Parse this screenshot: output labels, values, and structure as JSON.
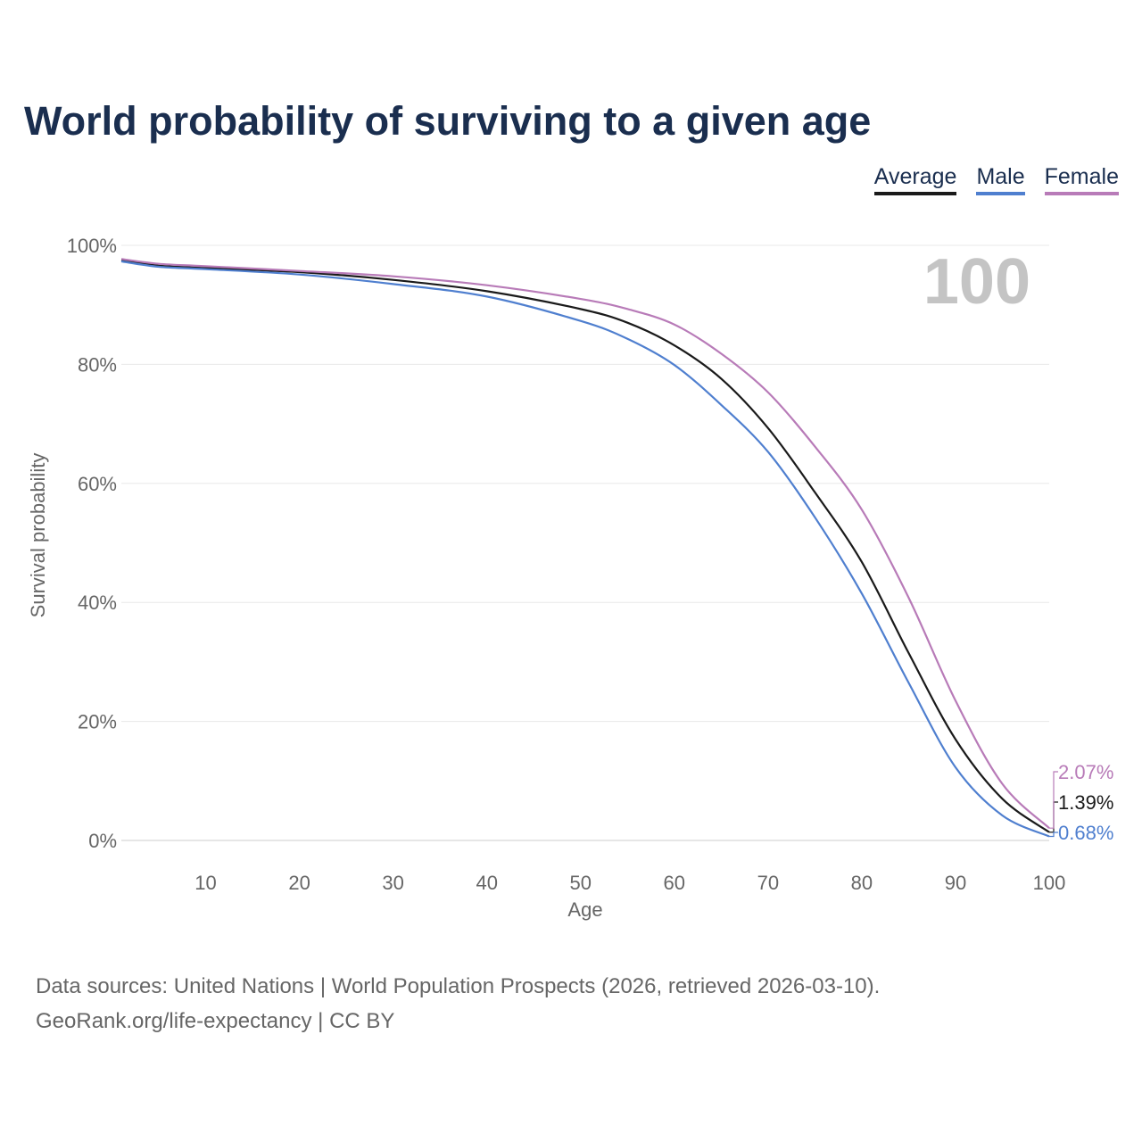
{
  "chart_data": {
    "type": "line",
    "title": "World probability of surviving to a given age",
    "xlabel": "Age",
    "ylabel": "Survival probability",
    "xlim": [
      1,
      100
    ],
    "ylim": [
      0,
      100
    ],
    "xticks": [
      10,
      20,
      30,
      40,
      50,
      60,
      70,
      80,
      90,
      100
    ],
    "yticks": [
      0,
      20,
      40,
      60,
      80,
      100
    ],
    "ytick_labels": [
      "0%",
      "20%",
      "40%",
      "60%",
      "80%",
      "100%"
    ],
    "grid": true,
    "legend_position": "top-right",
    "year_label": "100",
    "x": [
      1,
      5,
      10,
      20,
      30,
      40,
      50,
      55,
      60,
      65,
      70,
      75,
      80,
      85,
      90,
      95,
      100
    ],
    "series": [
      {
        "name": "Average",
        "color": "#1a1a1a",
        "end_label": "1.39%",
        "values": [
          97.5,
          96.6,
          96.2,
          95.5,
          94.2,
          92.3,
          89.3,
          87,
          83.2,
          77.6,
          69.3,
          58.5,
          46.8,
          31.5,
          17,
          7,
          1.39
        ]
      },
      {
        "name": "Male",
        "color": "#4f7fcf",
        "end_label": "0.68%",
        "values": [
          97.3,
          96.4,
          96.0,
          95.1,
          93.5,
          91.4,
          87.3,
          84.3,
          79.9,
          73.2,
          65.3,
          54.3,
          41.5,
          26.5,
          12.3,
          4.2,
          0.68
        ]
      },
      {
        "name": "Female",
        "color": "#b87bb8",
        "end_label": "2.07%",
        "values": [
          97.7,
          96.9,
          96.5,
          95.7,
          94.8,
          93.3,
          91,
          89.3,
          86.7,
          81.8,
          75.3,
          66.2,
          55.6,
          40.8,
          23.5,
          9.5,
          2.07
        ]
      }
    ]
  },
  "footer": {
    "line1": "Data sources: United Nations | World Population Prospects (2026, retrieved 2026-03-10).",
    "line2": "GeoRank.org/life-expectancy | CC BY"
  }
}
